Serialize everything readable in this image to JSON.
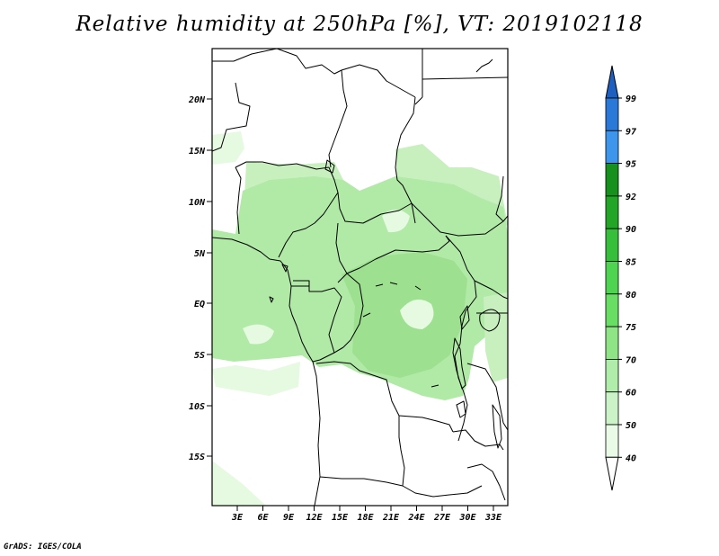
{
  "title": "Relative humidity at 250hPa [%], VT: 2019102118",
  "credit": "GrADS: IGES/COLA",
  "map": {
    "lat_labels": [
      "20N",
      "15N",
      "10N",
      "5N",
      "EQ",
      "5S",
      "10S",
      "15S"
    ],
    "lon_labels": [
      "3E",
      "6E",
      "9E",
      "12E",
      "15E",
      "18E",
      "21E",
      "24E",
      "27E",
      "30E",
      "33E"
    ],
    "fill_colors": {
      "rh_40_50": "#e6f9e1",
      "rh_50_60": "#c8f0be",
      "rh_60_70": "#b1e9a7",
      "rh_70_75": "#9de190"
    },
    "border_color": "#000000"
  },
  "colorbar": {
    "levels": [
      "99",
      "97",
      "95",
      "92",
      "90",
      "85",
      "80",
      "75",
      "70",
      "60",
      "50",
      "40"
    ],
    "colors": {
      "above_99": "#1f5fbf",
      "97_99": "#2a78d8",
      "95_97": "#3d96ec",
      "92_95": "#17911d",
      "90_92": "#23a628",
      "85_90": "#37bf3c",
      "80_85": "#4fd451",
      "75_80": "#69de65",
      "70_75": "#8fe586",
      "60_70": "#b0ecaa",
      "50_60": "#ccf3c7",
      "40_50": "#e9fbe6",
      "below_40": "#ffffff"
    }
  }
}
